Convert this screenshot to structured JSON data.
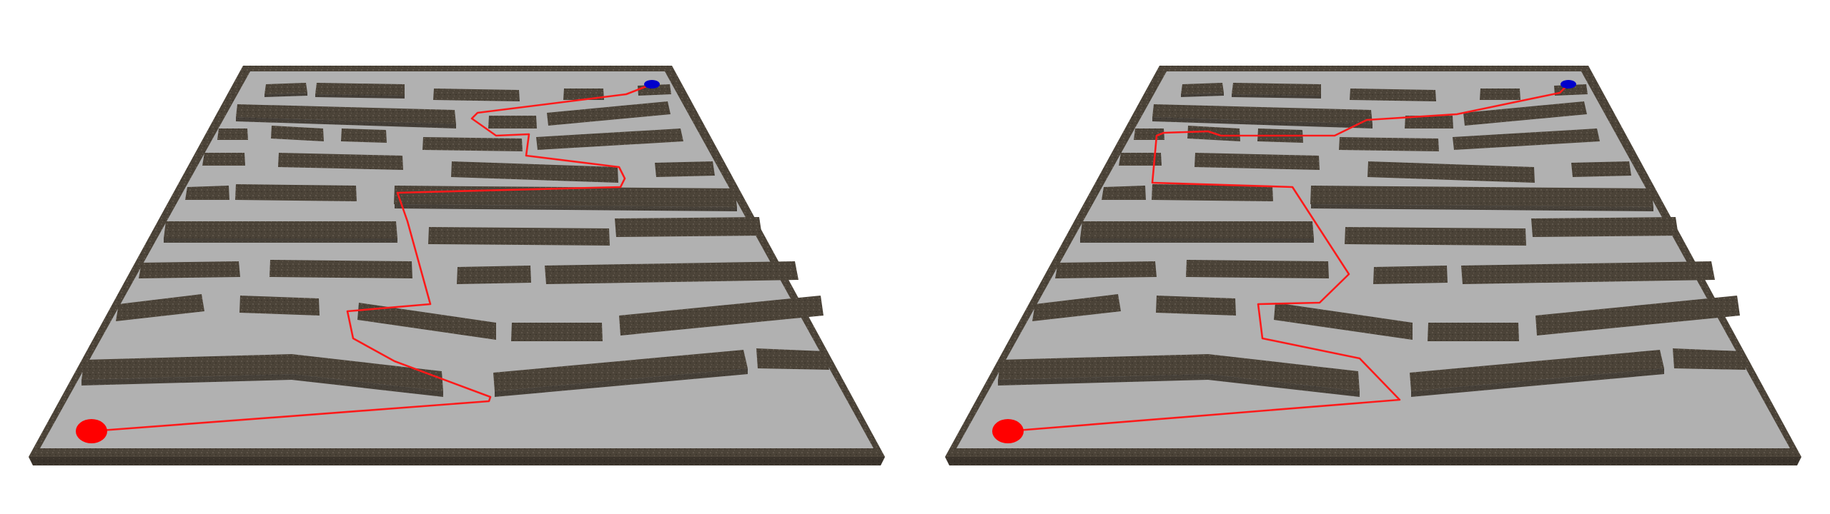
{
  "panels": [
    {
      "id": "left",
      "start_color": "#ff0000",
      "goal_color": "#0000cc",
      "path_color": "#ff1a1a"
    },
    {
      "id": "right",
      "start_color": "#ff0000",
      "goal_color": "#0000cc",
      "path_color": "#ff1a1a"
    }
  ],
  "colors": {
    "floor": "#b1b1b1",
    "wall": "#4a4238"
  }
}
